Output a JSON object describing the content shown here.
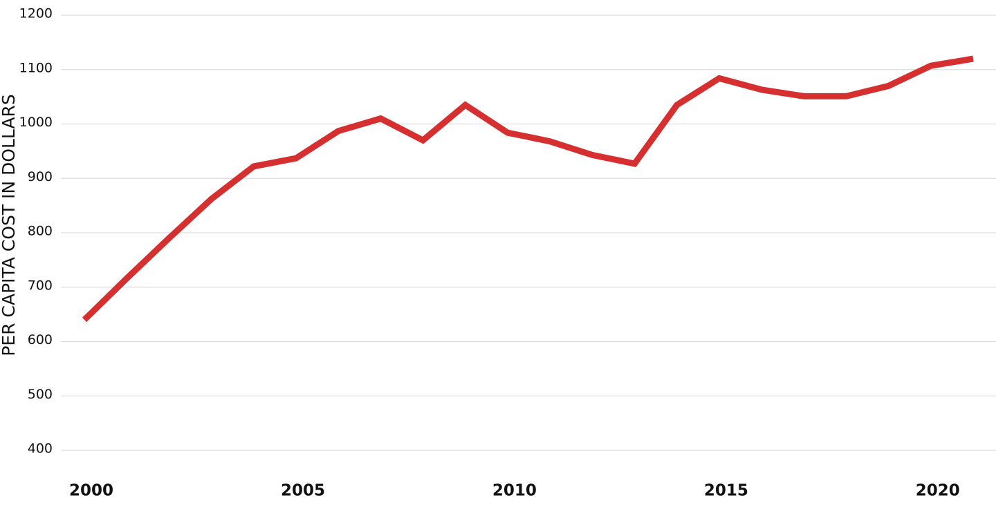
{
  "chart_data": {
    "type": "line",
    "y_label": "PER CAPITA COST IN DOLLARS",
    "x": [
      2000,
      2001,
      2002,
      2003,
      2004,
      2005,
      2006,
      2007,
      2008,
      2009,
      2010,
      2011,
      2012,
      2013,
      2014,
      2015,
      2016,
      2017,
      2018,
      2019,
      2020,
      2021
    ],
    "series": [
      {
        "color": "#d62f2f",
        "values": [
          640,
          716,
          790,
          862,
          922,
          937,
          987,
          1010,
          970,
          1035,
          984,
          968,
          943,
          927,
          1035,
          1084,
          1063,
          1051,
          1051,
          1070,
          1107,
          1120
        ]
      }
    ],
    "xlim": [
      2000,
      2021
    ],
    "xticks": [
      2000,
      2005,
      2010,
      2015,
      2020
    ],
    "ylim": [
      400,
      1200
    ],
    "yticks": [
      400,
      500,
      600,
      700,
      800,
      900,
      1000,
      1100,
      1200
    ],
    "grid": true
  }
}
